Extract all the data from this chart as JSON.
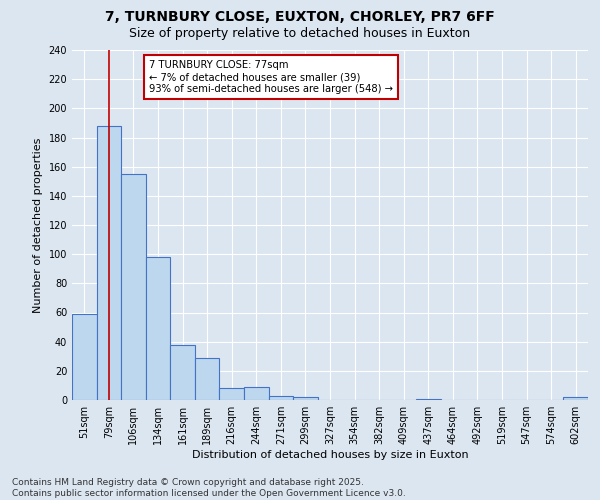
{
  "title": "7, TURNBURY CLOSE, EUXTON, CHORLEY, PR7 6FF",
  "subtitle": "Size of property relative to detached houses in Euxton",
  "xlabel": "Distribution of detached houses by size in Euxton",
  "ylabel": "Number of detached properties",
  "categories": [
    "51sqm",
    "79sqm",
    "106sqm",
    "134sqm",
    "161sqm",
    "189sqm",
    "216sqm",
    "244sqm",
    "271sqm",
    "299sqm",
    "327sqm",
    "354sqm",
    "382sqm",
    "409sqm",
    "437sqm",
    "464sqm",
    "492sqm",
    "519sqm",
    "547sqm",
    "574sqm",
    "602sqm"
  ],
  "values": [
    59,
    188,
    155,
    98,
    38,
    29,
    8,
    9,
    3,
    2,
    0,
    0,
    0,
    0,
    1,
    0,
    0,
    0,
    0,
    0,
    2
  ],
  "bar_color": "#bdd7ee",
  "bar_edge_color": "#4472c4",
  "vline_x_index": 1,
  "vline_color": "#c00000",
  "annotation_text": "7 TURNBURY CLOSE: 77sqm\n← 7% of detached houses are smaller (39)\n93% of semi-detached houses are larger (548) →",
  "annotation_box_color": "#ffffff",
  "annotation_box_edge": "#c00000",
  "ylim": [
    0,
    240
  ],
  "yticks": [
    0,
    20,
    40,
    60,
    80,
    100,
    120,
    140,
    160,
    180,
    200,
    220,
    240
  ],
  "bg_color": "#dce6f1",
  "plot_bg_color": "#dce6f1",
  "footer": "Contains HM Land Registry data © Crown copyright and database right 2025.\nContains public sector information licensed under the Open Government Licence v3.0.",
  "title_fontsize": 10,
  "subtitle_fontsize": 9,
  "axis_fontsize": 8,
  "tick_fontsize": 7,
  "footer_fontsize": 6.5
}
